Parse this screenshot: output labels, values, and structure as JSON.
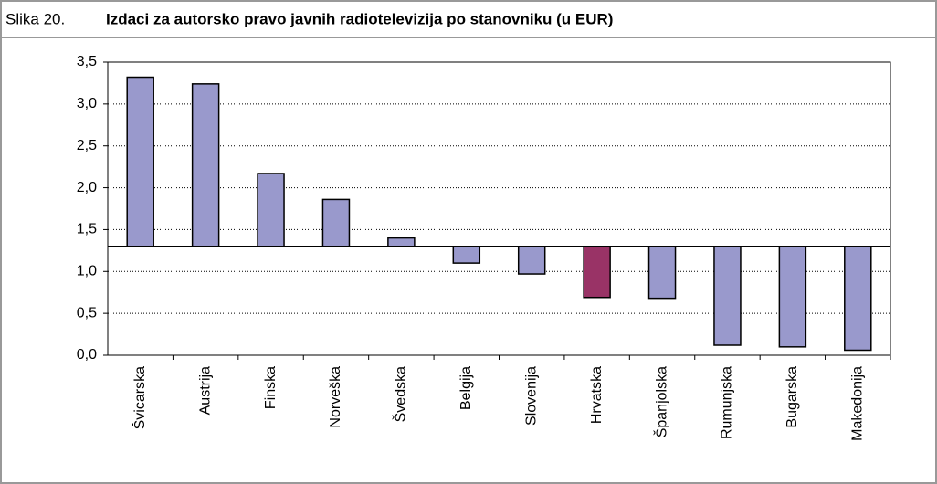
{
  "chart_data": {
    "type": "bar",
    "figure_label": "Slika 20.",
    "title": "Izdaci za autorsko pravo javnih radiotelevizija po stanovniku (u EUR)",
    "categories": [
      "Švicarska",
      "Austrija",
      "Finska",
      "Norveška",
      "Švedska",
      "Belgija",
      "Slovenija",
      "Hrvatska",
      "Španjolska",
      "Rumunjska",
      "Bugarska",
      "Makedonija"
    ],
    "values": [
      3.32,
      3.24,
      2.17,
      1.86,
      1.4,
      1.1,
      0.97,
      0.69,
      0.68,
      0.12,
      0.1,
      0.06
    ],
    "colors": [
      "#9999cc",
      "#9999cc",
      "#9999cc",
      "#9999cc",
      "#9999cc",
      "#9999cc",
      "#9999cc",
      "#993366",
      "#9999cc",
      "#9999cc",
      "#9999cc",
      "#9999cc"
    ],
    "baseline": 1.3,
    "ylim": [
      0,
      3.5
    ],
    "yticks": [
      {
        "value": 0,
        "label": "0,0"
      },
      {
        "value": 0.5,
        "label": "0,5"
      },
      {
        "value": 1,
        "label": "1,0"
      },
      {
        "value": 1.5,
        "label": "1,5"
      },
      {
        "value": 2,
        "label": "2,0"
      },
      {
        "value": 2.5,
        "label": "2,5"
      },
      {
        "value": 3,
        "label": "3,0"
      },
      {
        "value": 3.5,
        "label": "3,5"
      }
    ],
    "grid": true
  }
}
